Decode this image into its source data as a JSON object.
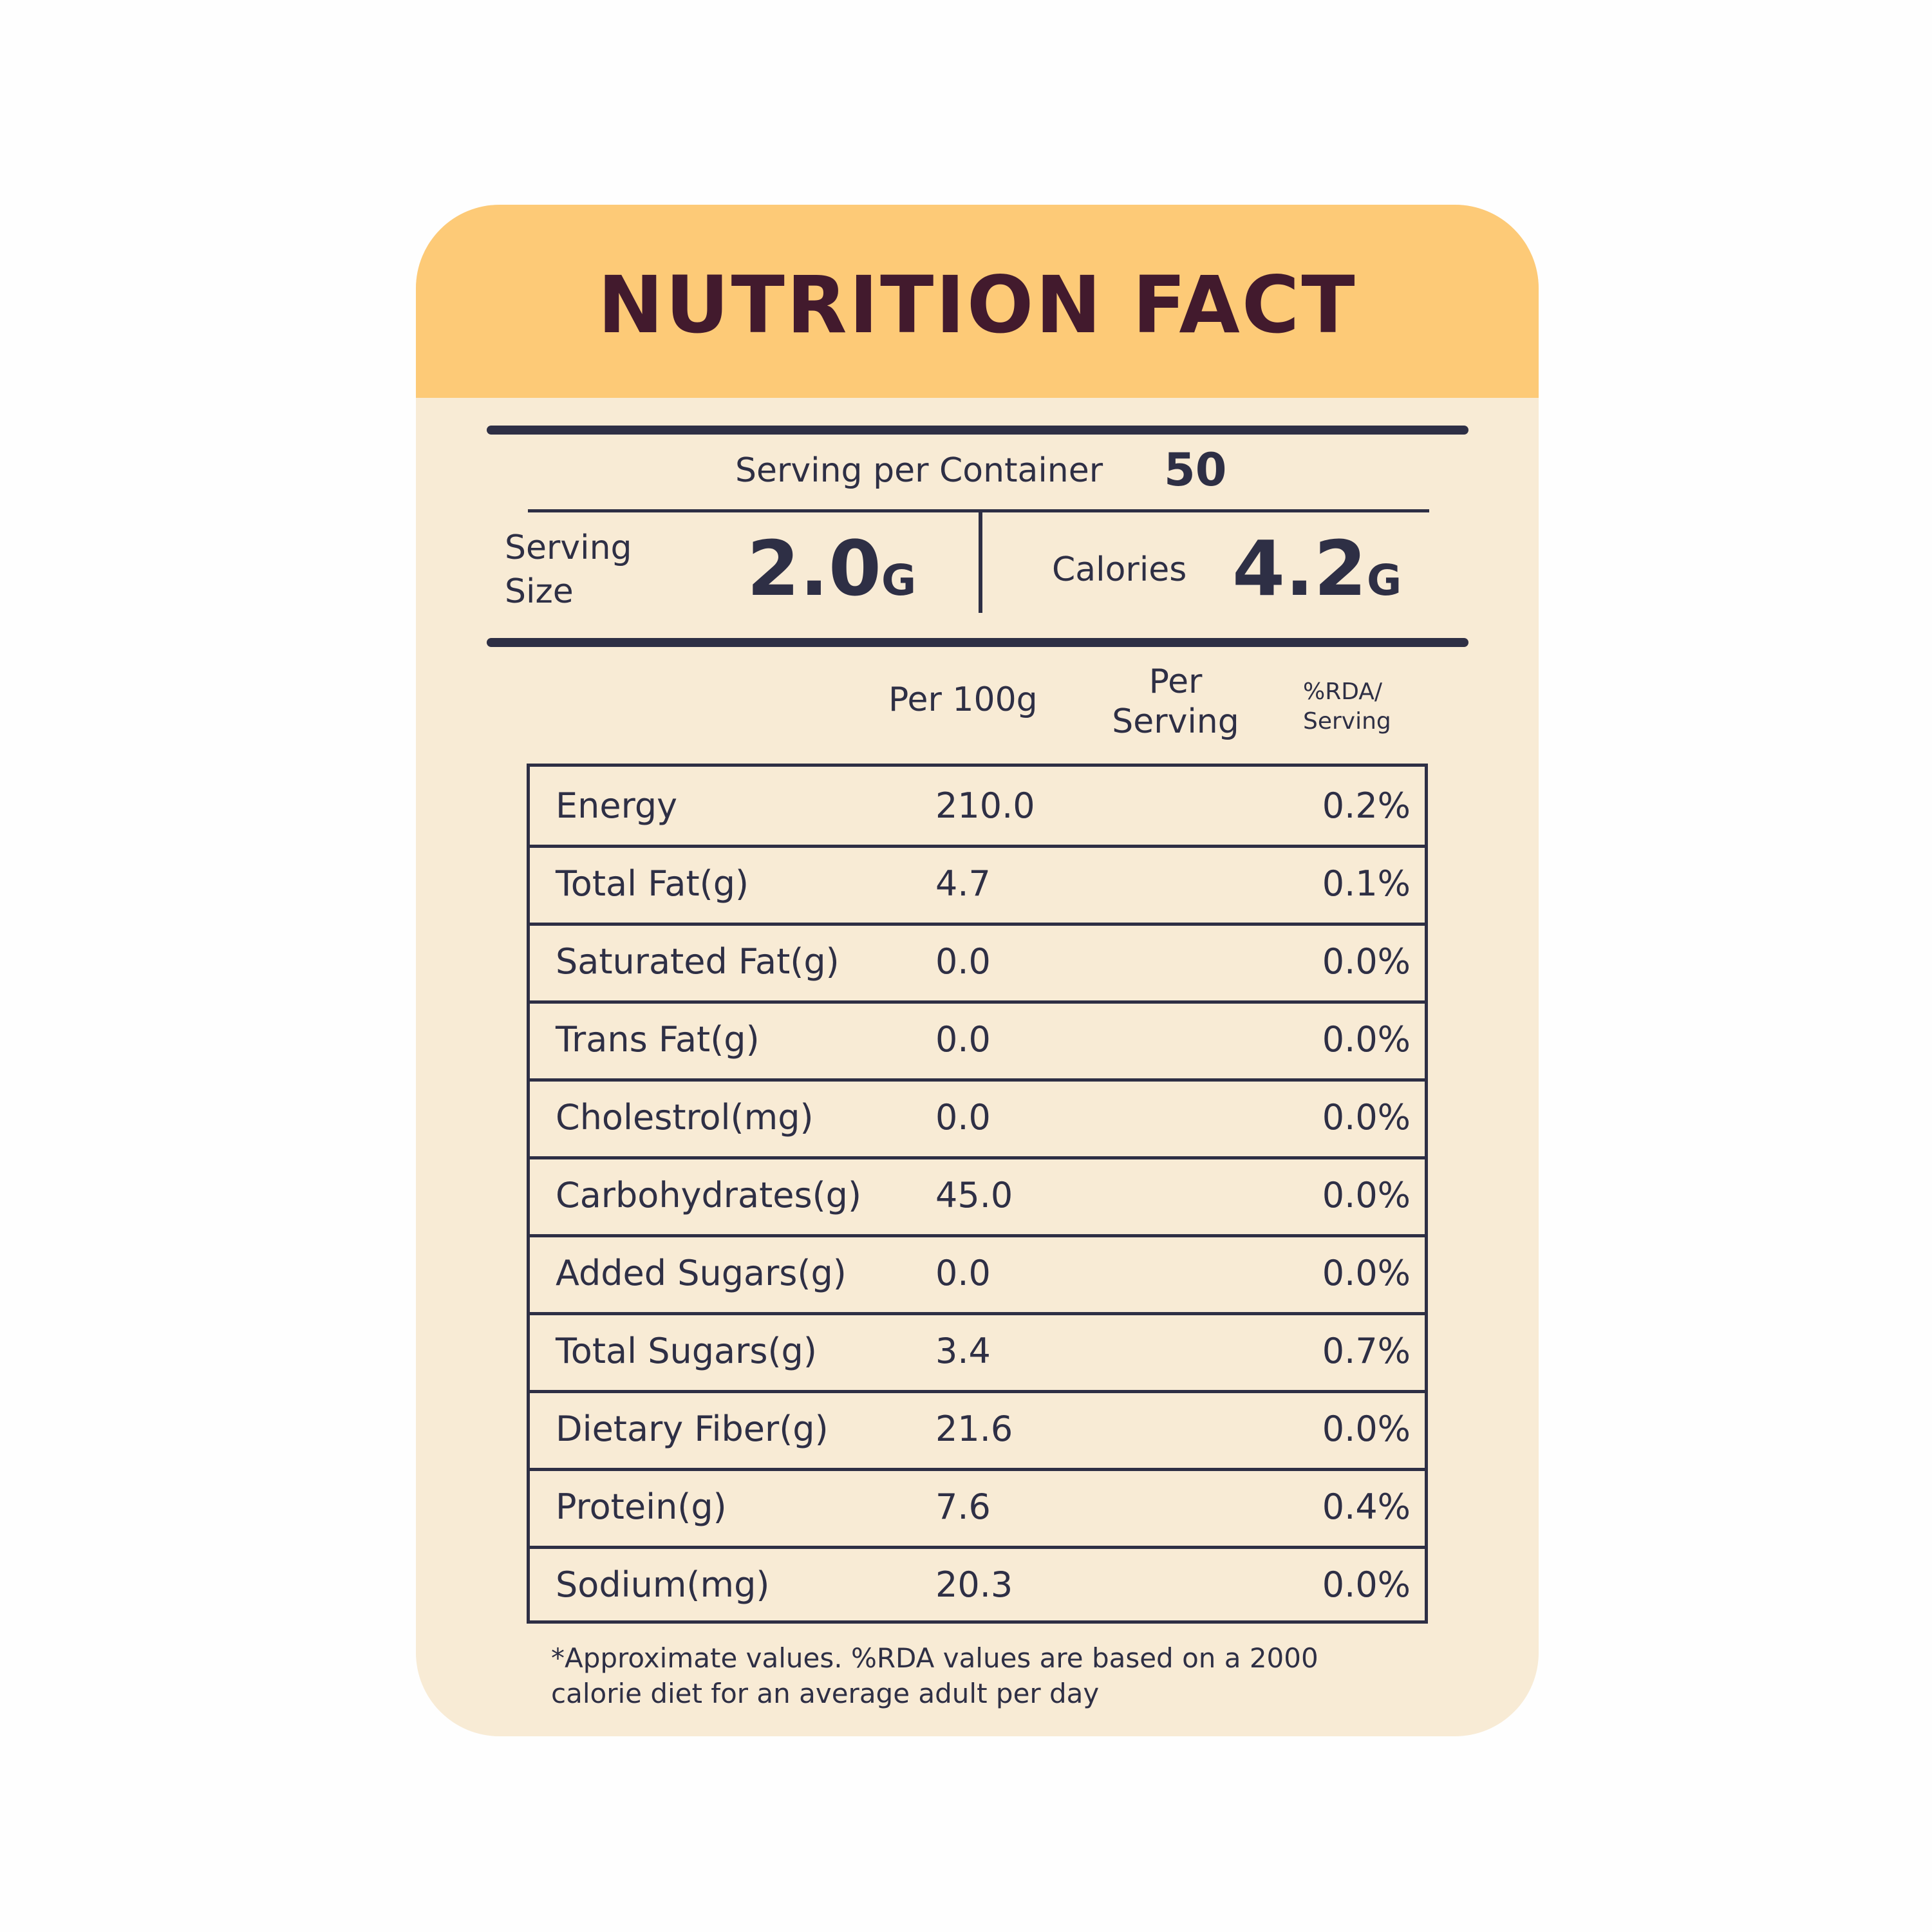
{
  "title": "NUTRITION FACT",
  "serving_per_container": {
    "label": "Serving per Container",
    "value": "50"
  },
  "serving_size": {
    "label_line1": "Serving",
    "label_line2": "Size",
    "value": "2.0",
    "unit": "G"
  },
  "calories": {
    "label": "Calories",
    "value": "4.2",
    "unit": "G"
  },
  "columns": {
    "per100": "Per 100g",
    "per_serving_line1": "Per",
    "per_serving_line2": "Serving",
    "rda_line1": "%RDA/",
    "rda_line2": "Serving"
  },
  "rows": [
    {
      "name": "Energy",
      "per100": "210.0",
      "rda": "0.2%"
    },
    {
      "name": "Total Fat(g)",
      "per100": "4.7",
      "rda": "0.1%"
    },
    {
      "name": "Saturated Fat(g)",
      "per100": "0.0",
      "rda": "0.0%"
    },
    {
      "name": "Trans Fat(g)",
      "per100": "0.0",
      "rda": "0.0%"
    },
    {
      "name": "Cholestrol(mg)",
      "per100": "0.0",
      "rda": "0.0%"
    },
    {
      "name": "Carbohydrates(g)",
      "per100": "45.0",
      "rda": "0.0%"
    },
    {
      "name": "Added Sugars(g)",
      "per100": "0.0",
      "rda": "0.0%"
    },
    {
      "name": "Total Sugars(g)",
      "per100": "3.4",
      "rda": "0.7%"
    },
    {
      "name": "Dietary Fiber(g)",
      "per100": "21.6",
      "rda": "0.0%"
    },
    {
      "name": "Protein(g)",
      "per100": "7.6",
      "rda": "0.4%"
    },
    {
      "name": "Sodium(mg)",
      "per100": "20.3",
      "rda": "0.0%"
    }
  ],
  "footnote_line1": "*Approximate values. %RDA values are based on a 2000",
  "footnote_line2": "calorie diet for an average adult per day",
  "colors": {
    "header_bg": "#fdca77",
    "card_bg": "#f8ebd5",
    "title_text": "#421a2d",
    "body_text": "#2e2f45"
  }
}
